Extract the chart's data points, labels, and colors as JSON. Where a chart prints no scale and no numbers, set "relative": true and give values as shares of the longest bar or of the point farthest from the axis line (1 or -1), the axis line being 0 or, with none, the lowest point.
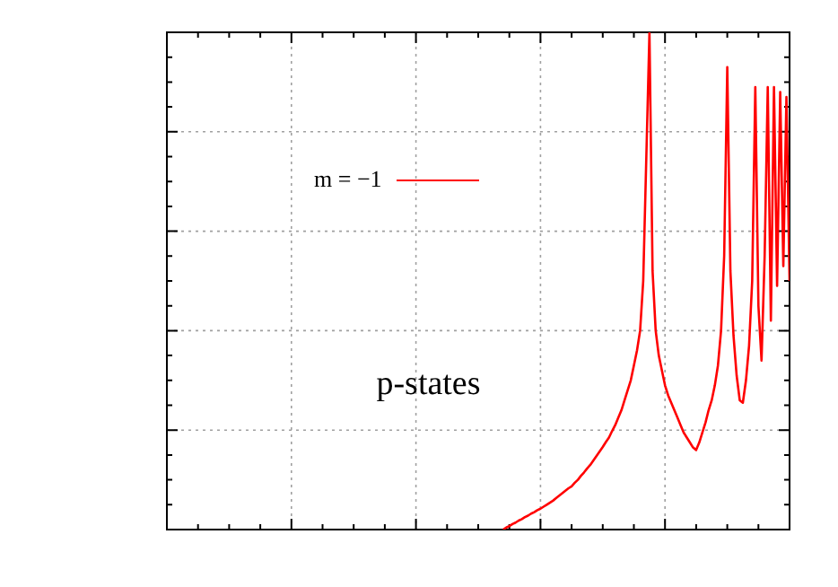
{
  "chart_data": {
    "type": "line",
    "relative": true,
    "grid": true,
    "legend": "top left",
    "marker": "none",
    "line_style": "solid",
    "annotations": [
      "p-states"
    ],
    "categories": [
      null,
      null,
      null,
      null,
      null,
      null,
      null,
      null,
      null,
      null,
      null,
      null,
      null,
      null,
      null,
      null,
      null,
      null,
      null,
      null,
      null,
      null,
      null,
      null,
      null,
      null,
      null,
      null,
      null,
      null,
      null,
      null,
      null,
      null,
      null,
      null,
      null,
      null,
      null,
      null,
      null,
      null,
      null,
      null,
      null,
      null,
      null,
      null,
      null,
      null,
      null,
      null,
      null,
      null,
      null,
      null,
      null,
      null,
      null,
      null,
      null,
      null,
      null,
      null,
      null,
      null,
      null,
      null,
      null,
      null,
      null,
      null,
      null,
      null,
      null,
      null,
      null,
      null,
      null,
      null,
      null,
      null,
      null,
      null,
      null,
      null,
      null,
      null,
      null,
      null,
      null,
      null,
      null,
      null,
      null,
      null,
      null,
      null,
      null,
      null,
      null,
      null,
      null,
      null,
      null,
      null,
      null,
      null,
      null,
      null,
      null,
      null,
      null,
      null,
      null,
      null,
      null,
      null,
      null,
      null,
      null,
      null,
      null,
      null,
      null,
      null,
      null,
      null,
      null,
      null,
      null,
      null,
      null,
      null,
      null,
      null,
      null,
      null,
      null,
      null,
      null,
      null,
      null,
      null,
      null,
      null,
      null,
      null,
      null,
      null,
      null,
      null,
      null,
      null,
      null,
      null,
      null,
      null,
      null,
      null,
      null,
      null,
      null,
      null,
      null,
      null,
      null,
      null,
      null,
      null,
      null,
      null,
      null,
      null,
      null,
      null,
      null,
      null,
      null,
      null,
      null,
      null,
      null,
      null,
      null,
      null,
      null,
      null,
      null,
      null,
      null,
      null,
      null,
      null,
      null,
      null,
      null,
      null,
      null,
      null,
      null
    ],
    "series": [
      {
        "name": "m = −1",
        "color": "#ff0000",
        "values": [
          null,
          null,
          null,
          null,
          null,
          null,
          null,
          null,
          null,
          null,
          null,
          null,
          null,
          null,
          null,
          null,
          null,
          null,
          null,
          null,
          null,
          null,
          null,
          null,
          null,
          null,
          null,
          null,
          null,
          null,
          null,
          null,
          null,
          null,
          null,
          null,
          null,
          null,
          null,
          null,
          null,
          null,
          null,
          null,
          null,
          null,
          null,
          null,
          null,
          null,
          null,
          null,
          null,
          null,
          null,
          null,
          null,
          null,
          null,
          null,
          null,
          null,
          null,
          null,
          null,
          null,
          null,
          null,
          null,
          null,
          null,
          null,
          null,
          null,
          null,
          null,
          null,
          null,
          null,
          null,
          null,
          null,
          null,
          null,
          null,
          null,
          null,
          null,
          null,
          null,
          null,
          null,
          null,
          null,
          null,
          null,
          null,
          null,
          null,
          null,
          null,
          null,
          null,
          null,
          null,
          null,
          null,
          null,
          0,
          0.004,
          0.007,
          0.011,
          0.014,
          0.018,
          0.021,
          0.025,
          0.028,
          0.032,
          0.035,
          0.039,
          0.042,
          0.046,
          0.05,
          0.054,
          0.058,
          0.063,
          0.068,
          0.073,
          0.078,
          0.083,
          0.087,
          0.094,
          0.1,
          0.108,
          0.115,
          0.123,
          0.13,
          0.139,
          0.148,
          0.157,
          0.166,
          0.176,
          0.185,
          0.198,
          0.21,
          0.225,
          0.24,
          0.26,
          0.28,
          0.3,
          0.33,
          0.36,
          0.4,
          0.5,
          0.75,
          1,
          0.52,
          0.4,
          0.35,
          0.32,
          0.29,
          0.27,
          0.255,
          0.24,
          0.225,
          0.21,
          0.195,
          0.185,
          0.175,
          0.165,
          0.16,
          0.175,
          0.195,
          0.215,
          0.24,
          0.26,
          0.29,
          0.33,
          0.4,
          0.55,
          0.93,
          0.52,
          0.39,
          0.31,
          0.26,
          0.255,
          0.3,
          0.37,
          0.5,
          0.89,
          0.45,
          0.34,
          0.55,
          0.89,
          0.42,
          0.89,
          0.49,
          0.88,
          0.53,
          0.87,
          0.5
        ]
      }
    ]
  }
}
